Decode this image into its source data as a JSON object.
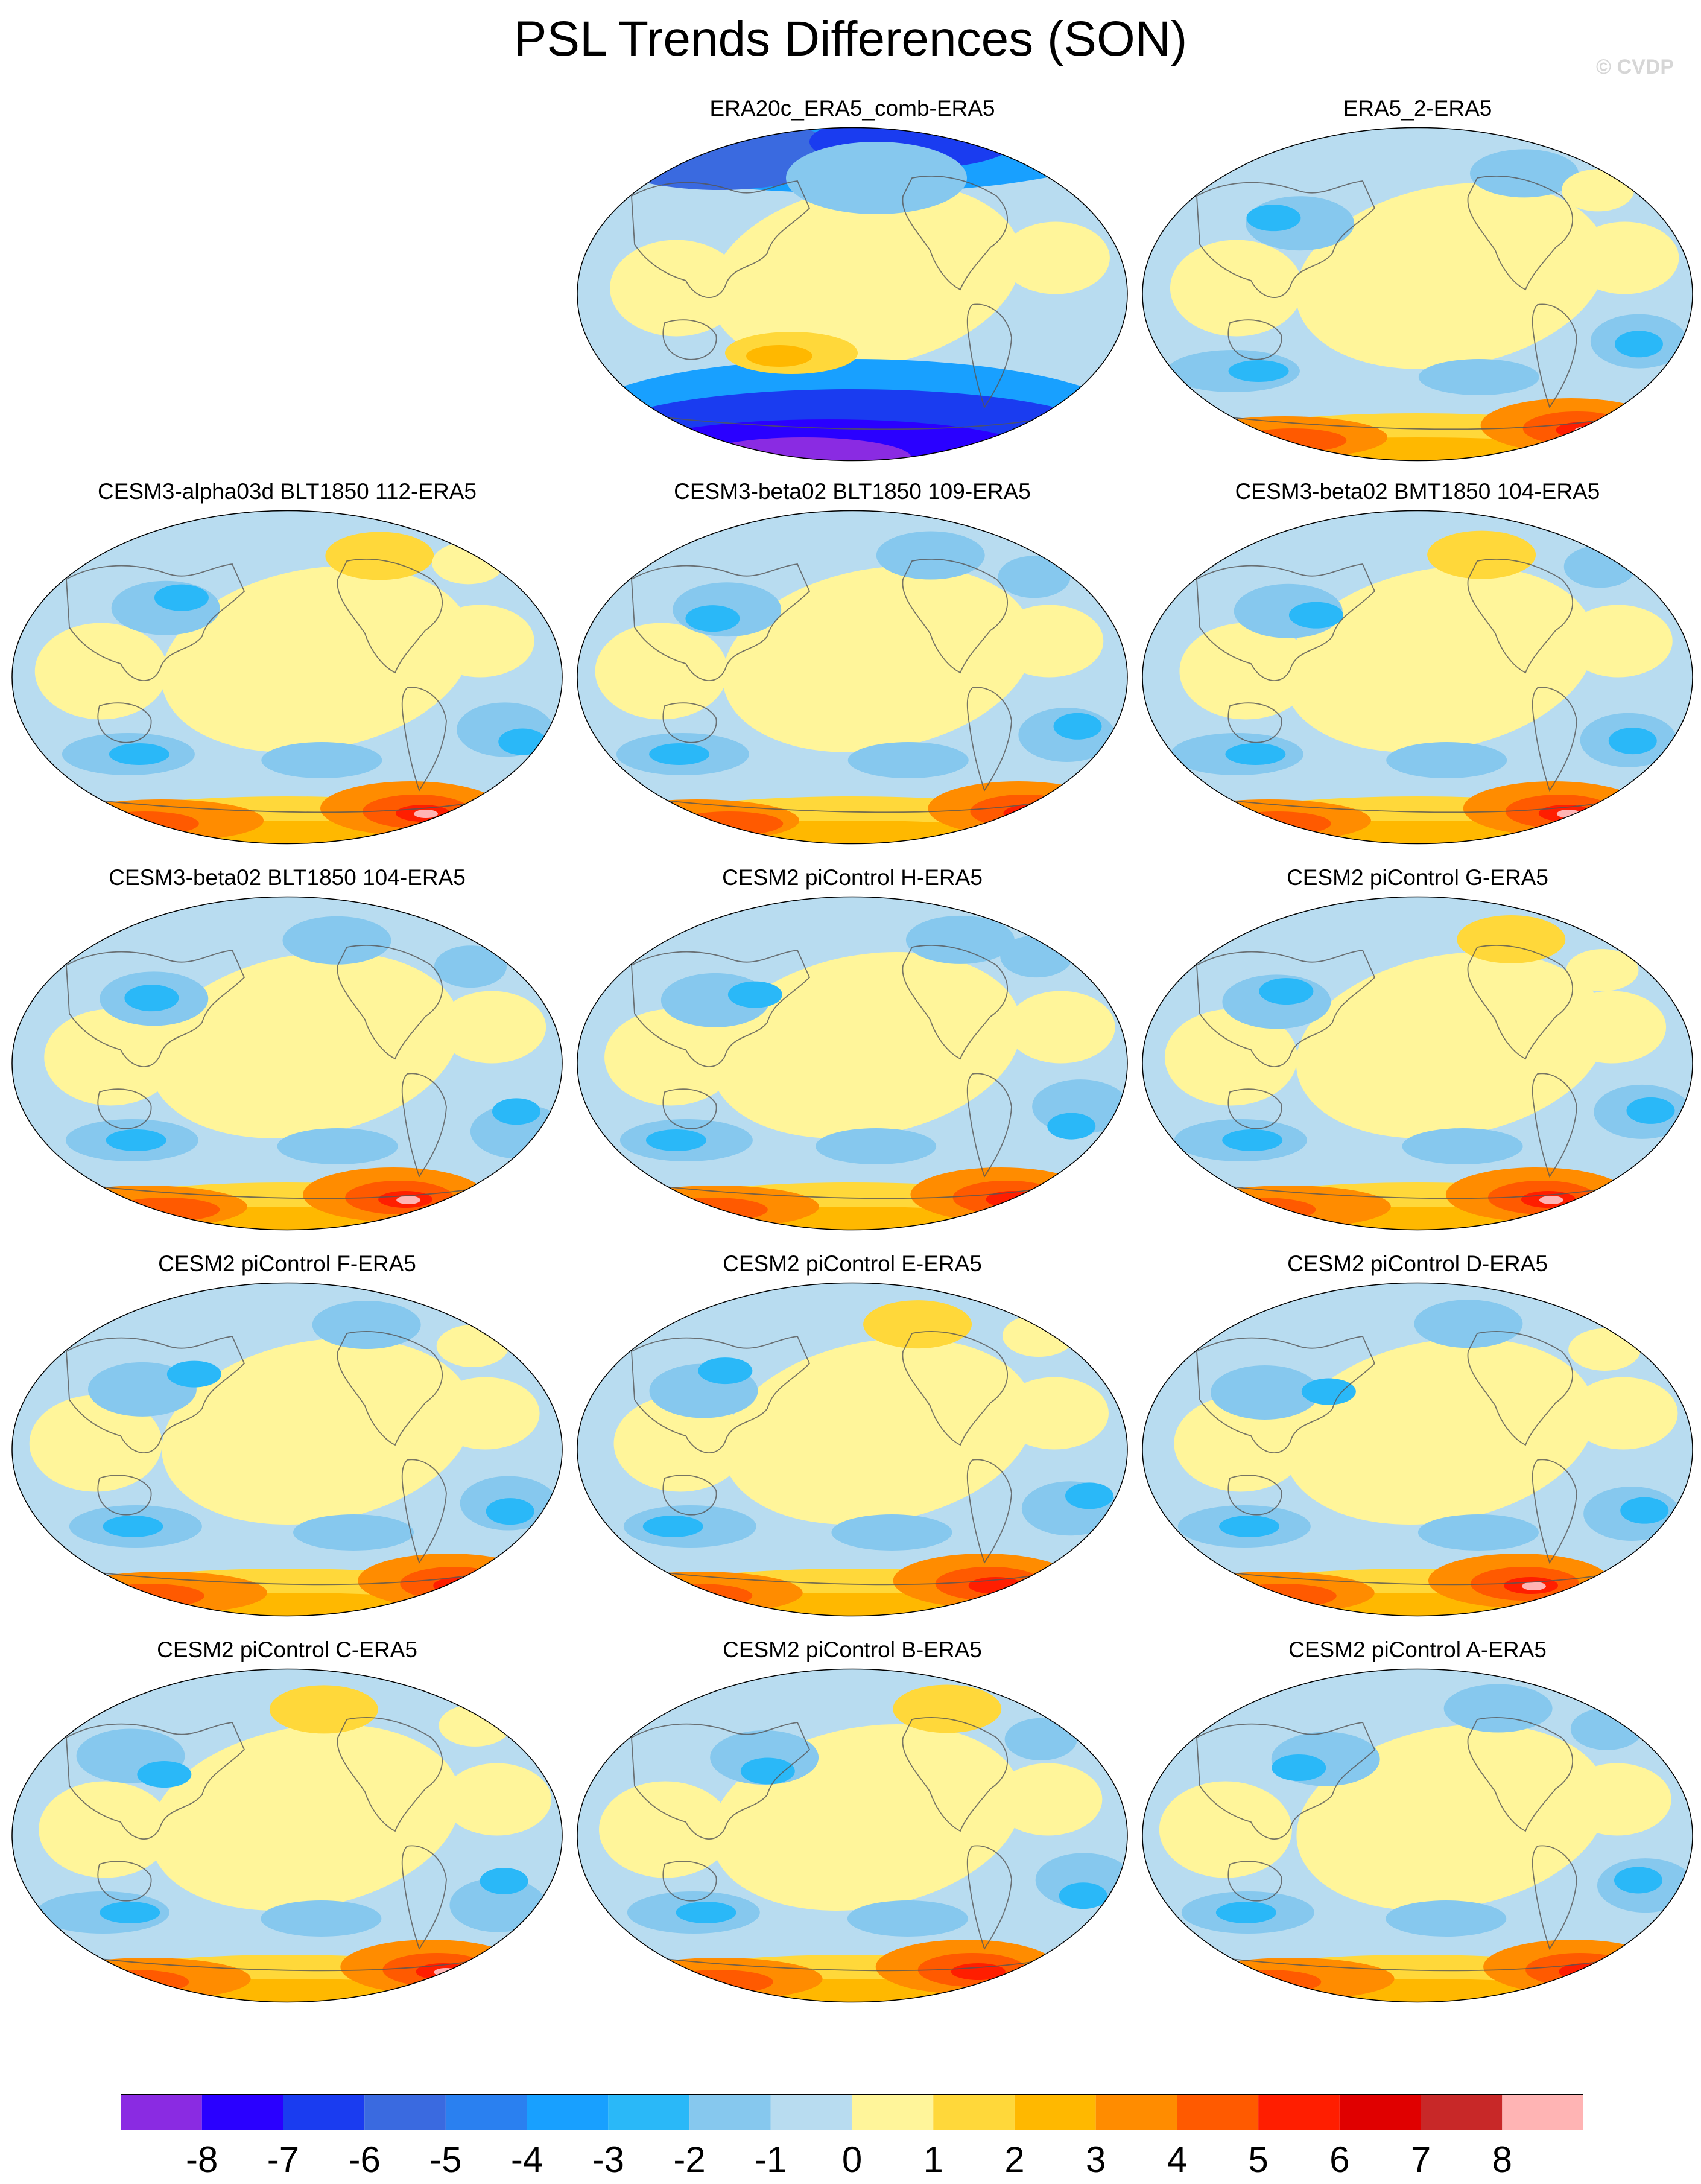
{
  "title": "PSL Trends Differences (SON)",
  "credit": "© CVDP",
  "panels": [
    {
      "row": 0,
      "col": 1,
      "title": "ERA20c_ERA5_comb-ERA5",
      "pattern": "cold-south"
    },
    {
      "row": 0,
      "col": 2,
      "title": "ERA5_2-ERA5",
      "pattern": "warm-south"
    },
    {
      "row": 1,
      "col": 0,
      "title": "CESM3-alpha03d BLT1850 112-ERA5",
      "pattern": "warm-south"
    },
    {
      "row": 1,
      "col": 1,
      "title": "CESM3-beta02 BLT1850 109-ERA5",
      "pattern": "warm-south"
    },
    {
      "row": 1,
      "col": 2,
      "title": "CESM3-beta02 BMT1850 104-ERA5",
      "pattern": "warm-south"
    },
    {
      "row": 2,
      "col": 0,
      "title": "CESM3-beta02 BLT1850 104-ERA5",
      "pattern": "warm-south"
    },
    {
      "row": 2,
      "col": 1,
      "title": "CESM2 piControl H-ERA5",
      "pattern": "warm-south"
    },
    {
      "row": 2,
      "col": 2,
      "title": "CESM2 piControl G-ERA5",
      "pattern": "warm-south"
    },
    {
      "row": 3,
      "col": 0,
      "title": "CESM2 piControl F-ERA5",
      "pattern": "warm-south"
    },
    {
      "row": 3,
      "col": 1,
      "title": "CESM2 piControl E-ERA5",
      "pattern": "warm-south"
    },
    {
      "row": 3,
      "col": 2,
      "title": "CESM2 piControl D-ERA5",
      "pattern": "warm-south"
    },
    {
      "row": 4,
      "col": 0,
      "title": "CESM2 piControl C-ERA5",
      "pattern": "warm-south"
    },
    {
      "row": 4,
      "col": 1,
      "title": "CESM2 piControl B-ERA5",
      "pattern": "warm-south"
    },
    {
      "row": 4,
      "col": 2,
      "title": "CESM2 piControl A-ERA5",
      "pattern": "warm-south"
    }
  ],
  "colorbar": {
    "colors": [
      "#8a2be2",
      "#2a00ff",
      "#1a3cf0",
      "#3a6ae0",
      "#2a80f0",
      "#18a0ff",
      "#2ab8f8",
      "#86c8ee",
      "#b8dcf0",
      "#fff59a",
      "#ffd83a",
      "#ffb800",
      "#ff8c00",
      "#ff5a00",
      "#ff1e00",
      "#e00000",
      "#c82828",
      "#ffb4b4"
    ],
    "labels": [
      "-8",
      "-7",
      "-6",
      "-5",
      "-4",
      "-3",
      "-2",
      "-1",
      "0",
      "1",
      "2",
      "3",
      "4",
      "5",
      "6",
      "7",
      "8"
    ]
  }
}
